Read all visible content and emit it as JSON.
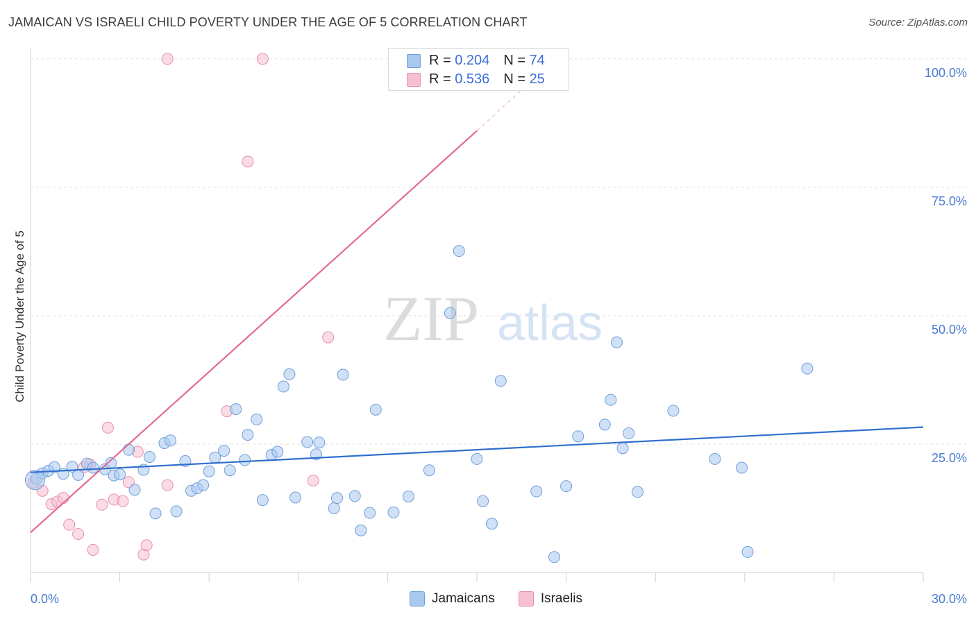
{
  "title": "JAMAICAN VS ISRAELI CHILD POVERTY UNDER THE AGE OF 5 CORRELATION CHART",
  "source": "Source: ZipAtlas.com",
  "watermark": {
    "zip": "ZIP",
    "atlas": "atlas"
  },
  "legend": {
    "rows": [
      {
        "r_label": "R = ",
        "r_value": "0.204",
        "n_label": "N = ",
        "n_value": "74",
        "color": "#a9c8f0",
        "border": "#6f9fd8"
      },
      {
        "r_label": "R = ",
        "r_value": "0.536",
        "n_label": "N = ",
        "n_value": "25",
        "color": "#f6c0d0",
        "border": "#e98fab"
      }
    ]
  },
  "bottom_legend": [
    {
      "label": "Jamaicans",
      "color": "#a9c8f0",
      "border": "#6f9fd8"
    },
    {
      "label": "Israelis",
      "color": "#f6c0d0",
      "border": "#e98fab"
    }
  ],
  "chart_data": {
    "type": "scatter",
    "title": "JAMAICAN VS ISRAELI CHILD POVERTY UNDER THE AGE OF 5 CORRELATION CHART",
    "xlabel": "",
    "ylabel": "Child Poverty Under the Age of 5",
    "xlim": [
      0,
      30
    ],
    "ylim": [
      0,
      102
    ],
    "x_tick_labels": [
      "0.0%",
      "30.0%"
    ],
    "y_ticks": [
      25,
      50,
      75,
      100
    ],
    "y_tick_labels": [
      "25.0%",
      "50.0%",
      "75.0%",
      "100.0%"
    ],
    "grid": true,
    "legend_position": "top-center",
    "series": [
      {
        "name": "Jamaicans",
        "color": "#a9c8f0",
        "edge": "#6f9fd8",
        "trend_color": "#2f6fce",
        "trend": {
          "x": [
            0,
            30
          ],
          "y": [
            19.5,
            28.3
          ]
        },
        "points": [
          [
            0.2,
            18.2
          ],
          [
            0.4,
            19.3
          ],
          [
            0.6,
            19.8
          ],
          [
            0.8,
            20.5
          ],
          [
            1.1,
            19.2
          ],
          [
            1.4,
            20.6
          ],
          [
            1.6,
            19.0
          ],
          [
            1.9,
            21.2
          ],
          [
            2.1,
            20.4
          ],
          [
            2.5,
            20.1
          ],
          [
            2.7,
            21.3
          ],
          [
            2.8,
            18.9
          ],
          [
            3.0,
            19.1
          ],
          [
            3.3,
            23.9
          ],
          [
            3.5,
            16.1
          ],
          [
            3.8,
            20.0
          ],
          [
            4.0,
            22.5
          ],
          [
            4.2,
            11.5
          ],
          [
            4.5,
            25.2
          ],
          [
            4.7,
            25.7
          ],
          [
            4.9,
            11.9
          ],
          [
            5.2,
            21.7
          ],
          [
            5.4,
            15.9
          ],
          [
            5.6,
            16.4
          ],
          [
            5.8,
            17.0
          ],
          [
            6.0,
            19.7
          ],
          [
            6.2,
            22.4
          ],
          [
            6.5,
            23.7
          ],
          [
            6.7,
            19.9
          ],
          [
            6.9,
            31.8
          ],
          [
            7.2,
            21.9
          ],
          [
            7.3,
            26.8
          ],
          [
            7.6,
            29.8
          ],
          [
            7.8,
            14.1
          ],
          [
            8.1,
            22.9
          ],
          [
            8.3,
            23.5
          ],
          [
            8.5,
            36.2
          ],
          [
            8.7,
            38.6
          ],
          [
            8.9,
            14.6
          ],
          [
            9.3,
            25.4
          ],
          [
            9.6,
            23.0
          ],
          [
            9.7,
            25.3
          ],
          [
            10.2,
            12.5
          ],
          [
            10.3,
            14.5
          ],
          [
            10.5,
            38.5
          ],
          [
            10.9,
            14.9
          ],
          [
            11.1,
            8.2
          ],
          [
            11.4,
            11.6
          ],
          [
            11.6,
            31.7
          ],
          [
            12.2,
            11.7
          ],
          [
            12.7,
            14.8
          ],
          [
            13.4,
            19.9
          ],
          [
            14.1,
            50.5
          ],
          [
            14.4,
            62.6
          ],
          [
            15.0,
            22.1
          ],
          [
            15.2,
            13.9
          ],
          [
            15.5,
            9.5
          ],
          [
            15.8,
            37.3
          ],
          [
            17.0,
            15.8
          ],
          [
            17.6,
            3.0
          ],
          [
            18.0,
            16.8
          ],
          [
            18.4,
            26.5
          ],
          [
            19.3,
            28.8
          ],
          [
            19.5,
            33.6
          ],
          [
            19.7,
            44.8
          ],
          [
            19.9,
            24.2
          ],
          [
            20.1,
            27.1
          ],
          [
            20.4,
            15.7
          ],
          [
            21.6,
            31.5
          ],
          [
            23.0,
            22.1
          ],
          [
            23.9,
            20.4
          ],
          [
            24.1,
            4.0
          ],
          [
            26.1,
            39.7
          ],
          [
            0.15,
            18.0
          ]
        ]
      },
      {
        "name": "Israelis",
        "color": "#f6c0d0",
        "edge": "#e98fab",
        "trend_color": "#e26a93",
        "trend": {
          "x": [
            0,
            15
          ],
          "y": [
            7.8,
            86.0
          ]
        },
        "trend_dashed": {
          "x": [
            15,
            16.7
          ],
          "y": [
            86.0,
            95.0
          ]
        },
        "points": [
          [
            0.1,
            17.5
          ],
          [
            0.4,
            15.9
          ],
          [
            0.7,
            13.3
          ],
          [
            0.9,
            13.8
          ],
          [
            1.1,
            14.5
          ],
          [
            1.3,
            9.3
          ],
          [
            1.6,
            7.5
          ],
          [
            1.8,
            20.5
          ],
          [
            2.0,
            21.0
          ],
          [
            2.1,
            4.4
          ],
          [
            2.4,
            13.2
          ],
          [
            2.6,
            28.2
          ],
          [
            2.8,
            14.2
          ],
          [
            3.1,
            13.9
          ],
          [
            3.3,
            17.6
          ],
          [
            3.6,
            23.5
          ],
          [
            3.8,
            3.5
          ],
          [
            3.9,
            5.3
          ],
          [
            4.6,
            17.0
          ],
          [
            4.6,
            100.0
          ],
          [
            6.6,
            31.4
          ],
          [
            7.3,
            80.0
          ],
          [
            7.8,
            100.0
          ],
          [
            9.5,
            17.9
          ],
          [
            10.0,
            45.8
          ]
        ]
      }
    ]
  }
}
